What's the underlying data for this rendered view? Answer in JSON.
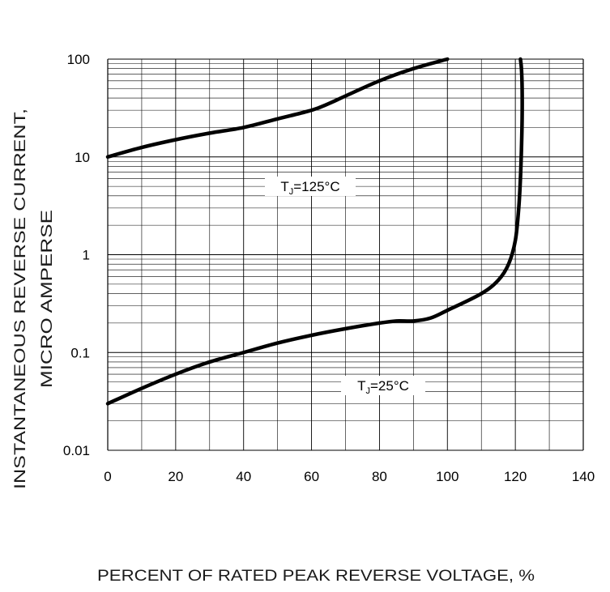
{
  "chart_data": {
    "type": "line",
    "xlabel": "PERCENT OF RATED PEAK REVERSE VOLTAGE, %",
    "ylabel_line1": "INSTANTANEOUS REVERSE CURRENT,",
    "ylabel_line2": "MICRO AMPERSE",
    "xlim": [
      0,
      140
    ],
    "ylim": [
      0.01,
      100
    ],
    "yscale": "log",
    "grid": true,
    "x_ticks": [
      0,
      20,
      40,
      60,
      80,
      100,
      120,
      140
    ],
    "x_tick_labels": [
      "0",
      "20",
      "40",
      "60",
      "80",
      "100",
      "120",
      "140"
    ],
    "y_ticks": [
      0.01,
      0.1,
      1,
      10,
      100
    ],
    "y_tick_labels": [
      "0.01",
      "0.1",
      "1",
      "10",
      "100"
    ],
    "colors": {
      "line": "#000000",
      "grid": "#000000",
      "background": "#ffffff"
    },
    "series": [
      {
        "label_main": "T",
        "label_sub": "J",
        "label_rest": "=125°C",
        "x": [
          0,
          10,
          20,
          30,
          40,
          50,
          60,
          65,
          70,
          80,
          90,
          100
        ],
        "y": [
          10,
          12.5,
          15,
          17.5,
          20,
          24.5,
          30,
          35,
          42,
          60,
          80,
          100
        ]
      },
      {
        "label_main": "T",
        "label_sub": "J",
        "label_rest": "=25°C",
        "x": [
          0,
          10,
          20,
          30,
          40,
          50,
          60,
          70,
          80,
          85,
          90,
          95,
          100,
          110,
          115,
          118,
          120,
          121,
          121.5,
          121.8,
          122,
          122,
          121.8,
          121.5
        ],
        "y": [
          0.03,
          0.043,
          0.06,
          0.08,
          0.1,
          0.125,
          0.15,
          0.175,
          0.2,
          0.21,
          0.21,
          0.225,
          0.27,
          0.4,
          0.55,
          0.8,
          1.4,
          3,
          6,
          12,
          25,
          50,
          80,
          100
        ]
      }
    ]
  }
}
